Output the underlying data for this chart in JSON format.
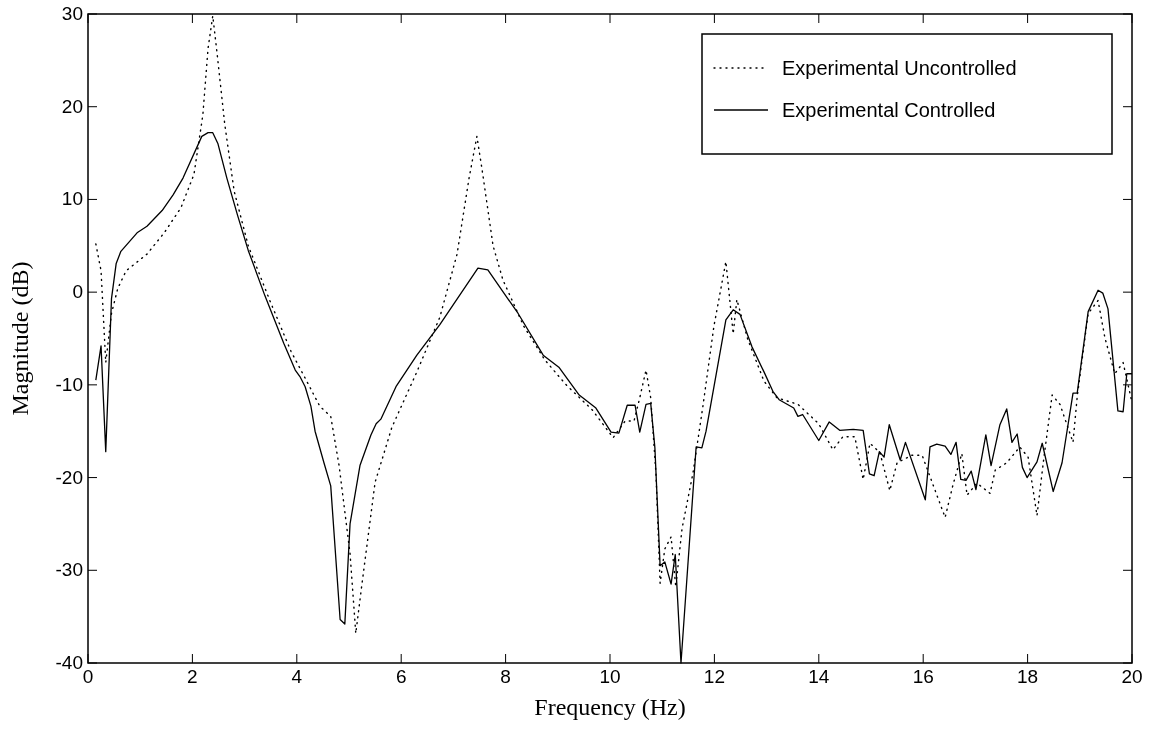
{
  "chart_data": {
    "type": "line",
    "xlabel": "Frequency (Hz)",
    "ylabel": "Magnitude (dB)",
    "xlim": [
      0,
      20
    ],
    "ylim": [
      -40,
      30
    ],
    "xticks": [
      0,
      2,
      4,
      6,
      8,
      10,
      12,
      14,
      16,
      18,
      20
    ],
    "yticks": [
      -40,
      -30,
      -20,
      -10,
      0,
      10,
      20,
      30
    ],
    "grid": false,
    "legend": "top right",
    "series": [
      {
        "name": "Experimental Uncontrolled",
        "color": "#000000",
        "line_style": "dotted",
        "x": [
          0.15,
          0.25,
          0.34,
          0.45,
          0.57,
          0.73,
          1.13,
          1.46,
          1.78,
          2.03,
          2.2,
          2.3,
          2.39,
          2.47,
          2.62,
          2.8,
          3.07,
          3.49,
          3.89,
          4.19,
          4.44,
          4.65,
          4.81,
          5.02,
          5.13,
          5.25,
          5.5,
          5.82,
          6.3,
          6.74,
          7.07,
          7.3,
          7.45,
          7.55,
          7.76,
          7.95,
          8.35,
          8.75,
          9.16,
          9.66,
          10.06,
          10.29,
          10.46,
          10.57,
          10.69,
          10.78,
          10.88,
          10.96,
          11.05,
          11.17,
          11.26,
          11.38,
          11.59,
          11.78,
          11.99,
          12.22,
          12.36,
          12.43,
          12.64,
          12.95,
          13.2,
          13.6,
          14.0,
          14.27,
          14.46,
          14.69,
          14.85,
          14.98,
          15.17,
          15.36,
          15.5,
          15.78,
          15.98,
          16.42,
          16.57,
          16.74,
          16.84,
          17.03,
          17.28,
          17.38,
          17.6,
          17.85,
          18.01,
          18.18,
          18.3,
          18.47,
          18.62,
          18.87,
          18.95,
          19.16,
          19.35,
          19.48,
          19.67,
          19.83,
          20.0
        ],
        "values": [
          5.2,
          2.3,
          -7.6,
          -2.3,
          0.4,
          2.3,
          4.1,
          6.4,
          9.1,
          12.7,
          19.1,
          26.3,
          29.8,
          25.9,
          18.1,
          10.9,
          5.0,
          -1.0,
          -6.4,
          -9.6,
          -12.3,
          -13.4,
          -18.7,
          -28.2,
          -36.8,
          -31.4,
          -20.5,
          -14.6,
          -8.6,
          -2.7,
          4.1,
          12.3,
          16.8,
          13.2,
          5.0,
          1.3,
          -3.7,
          -7.3,
          -10.0,
          -12.7,
          -15.7,
          -13.9,
          -13.9,
          -11.4,
          -8.4,
          -11.4,
          -19.5,
          -31.4,
          -27.7,
          -26.4,
          -31.8,
          -25.5,
          -19.5,
          -12.3,
          -3.7,
          3.3,
          -4.5,
          -0.8,
          -5.1,
          -9.6,
          -11.4,
          -12.1,
          -14.2,
          -17.0,
          -15.6,
          -15.6,
          -20.2,
          -16.3,
          -17.3,
          -21.4,
          -18.4,
          -17.6,
          -17.6,
          -24.3,
          -20.8,
          -17.4,
          -21.9,
          -20.6,
          -21.7,
          -19.2,
          -18.4,
          -16.7,
          -17.8,
          -24.1,
          -18.4,
          -11.1,
          -12.1,
          -16.2,
          -11.3,
          -2.3,
          -0.9,
          -4.9,
          -8.8,
          -7.6,
          -11.9
        ]
      },
      {
        "name": "Experimental Controlled",
        "color": "#000000",
        "line_style": "solid",
        "x": [
          0.15,
          0.25,
          0.34,
          0.45,
          0.54,
          0.63,
          0.94,
          1.13,
          1.42,
          1.63,
          1.82,
          2.18,
          2.3,
          2.39,
          2.49,
          2.66,
          2.87,
          3.07,
          3.39,
          3.75,
          3.97,
          4.06,
          4.16,
          4.27,
          4.35,
          4.52,
          4.65,
          4.83,
          4.92,
          5.02,
          5.21,
          5.42,
          5.52,
          5.61,
          5.9,
          6.3,
          6.74,
          7.47,
          7.66,
          8.24,
          8.72,
          9.02,
          9.41,
          9.73,
          10.02,
          10.17,
          10.33,
          10.48,
          10.57,
          10.69,
          10.78,
          10.86,
          10.96,
          11.05,
          11.17,
          11.25,
          11.36,
          11.65,
          11.76,
          11.84,
          12.22,
          12.36,
          12.49,
          12.72,
          12.95,
          13.12,
          13.24,
          13.52,
          13.6,
          13.69,
          14.0,
          14.2,
          14.4,
          14.66,
          14.85,
          14.97,
          15.06,
          15.16,
          15.25,
          15.35,
          15.56,
          15.66,
          16.04,
          16.13,
          16.26,
          16.42,
          16.53,
          16.63,
          16.72,
          16.82,
          16.92,
          17.01,
          17.2,
          17.3,
          17.47,
          17.6,
          17.7,
          17.8,
          17.9,
          17.99,
          18.18,
          18.28,
          18.49,
          18.66,
          18.87,
          18.95,
          19.16,
          19.35,
          19.44,
          19.54,
          19.73,
          19.83,
          19.9,
          20.0
        ],
        "values": [
          -9.5,
          -5.8,
          -17.2,
          -0.7,
          3.1,
          4.4,
          6.4,
          7.1,
          8.8,
          10.5,
          12.3,
          16.8,
          17.2,
          17.2,
          16.0,
          12.3,
          8.2,
          4.5,
          -0.4,
          -5.5,
          -8.4,
          -9.1,
          -10.2,
          -12.3,
          -15.0,
          -18.4,
          -20.9,
          -35.3,
          -35.8,
          -25.0,
          -18.7,
          -15.4,
          -14.2,
          -13.7,
          -10.2,
          -6.8,
          -3.5,
          2.6,
          2.4,
          -2.3,
          -6.8,
          -8.1,
          -11.1,
          -12.5,
          -15.1,
          -15.2,
          -12.2,
          -12.2,
          -15.1,
          -12.1,
          -12.0,
          -16.8,
          -29.5,
          -29.1,
          -31.5,
          -28.3,
          -40,
          -16.7,
          -16.8,
          -15.0,
          -3.0,
          -1.9,
          -2.4,
          -5.9,
          -8.6,
          -10.7,
          -11.6,
          -12.5,
          -13.4,
          -13.2,
          -16.0,
          -14.0,
          -14.9,
          -14.8,
          -14.9,
          -19.6,
          -19.8,
          -17.2,
          -17.8,
          -14.3,
          -18.1,
          -16.2,
          -22.4,
          -16.7,
          -16.4,
          -16.6,
          -17.5,
          -16.2,
          -20.2,
          -20.3,
          -19.3,
          -21.3,
          -15.4,
          -18.7,
          -14.3,
          -12.6,
          -16.2,
          -15.3,
          -18.9,
          -20.0,
          -18.3,
          -16.3,
          -21.5,
          -18.4,
          -10.9,
          -10.9,
          -2.1,
          0.2,
          -0.1,
          -1.8,
          -12.8,
          -12.9,
          -8.8,
          -8.8
        ]
      }
    ]
  }
}
